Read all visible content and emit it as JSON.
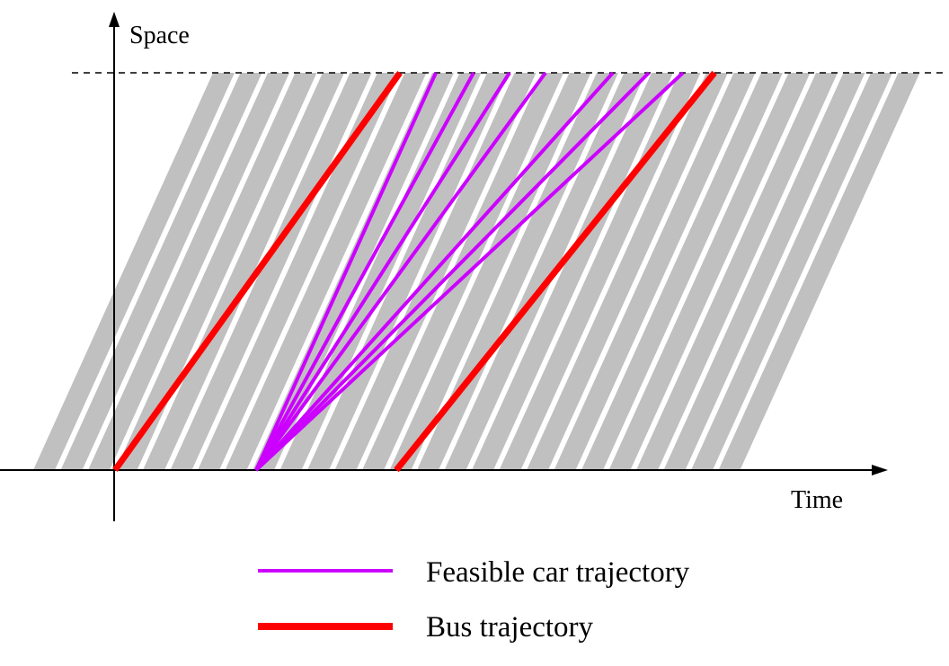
{
  "axes": {
    "y_label": "Space",
    "x_label": "Time"
  },
  "legend": {
    "items": [
      {
        "label": "Feasible car trajectory",
        "color": "#cc00ff",
        "kind": "car"
      },
      {
        "label": "Bus trajectory",
        "color": "#ff0000",
        "kind": "bus"
      }
    ]
  },
  "colors": {
    "band": "#c0c0c0",
    "car": "#cc00ff",
    "bus": "#ff0000",
    "axis": "#000000"
  },
  "diagram": {
    "band_count": 26,
    "car_trajectory_count": 7,
    "bus_trajectory_count": 2
  }
}
